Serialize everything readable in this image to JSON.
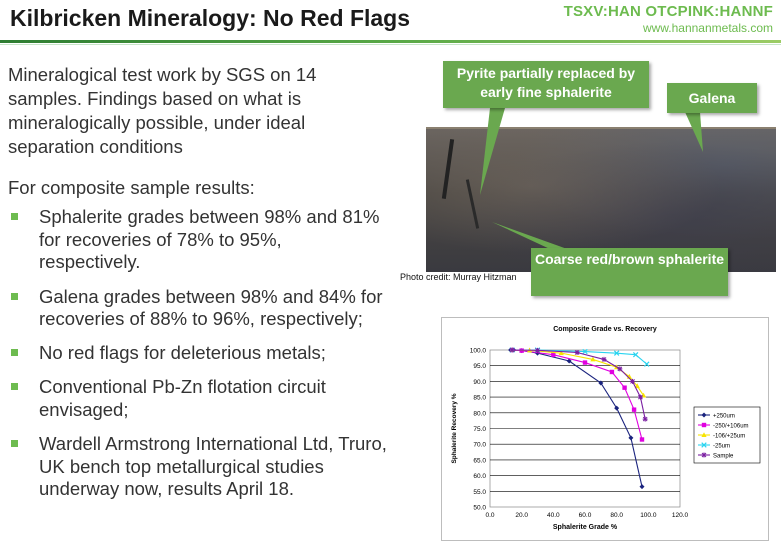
{
  "header": {
    "title": "Kilbricken Mineralogy: No Red Flags",
    "ticker": "TSXV:HAN OTCPINK:HANNF",
    "website": "www.hannanmetals.com"
  },
  "body": {
    "intro": "Mineralogical test work by SGS on 14 samples. Findings based on what is mineralogically possible, under ideal separation conditions",
    "composite_heading": "For composite sample results:",
    "bullets": [
      "Sphalerite grades between 98% and 81% for recoveries of 78% to 95%, respectively.",
      "Galena grades between 98% and 84% for recoveries of 88% to 96%, respectively;",
      "No red flags for deleterious metals;",
      "Conventional Pb-Zn flotation circuit envisaged;",
      "Wardell Armstrong International Ltd, Truro, UK bench top metallurgical studies underway now, results April 18."
    ]
  },
  "photo": {
    "callout_pyrite": "Pyrite partially replaced by early fine sphalerite",
    "callout_galena": "Galena",
    "callout_sphalerite": "Coarse red/brown sphalerite",
    "credit": "Photo credit: Murray Hitzman",
    "callout_color": "#6aa84f"
  },
  "chart_data": {
    "type": "line",
    "title": "Composite Grade vs. Recovery",
    "xlabel": "Sphalerite Grade %",
    "ylabel": "Sphalerite Recovery %",
    "xlim": [
      0,
      120
    ],
    "ylim": [
      50,
      100
    ],
    "xticks": [
      "0.0",
      "20.0",
      "40.0",
      "60.0",
      "80.0",
      "100.0",
      "120.0"
    ],
    "yticks": [
      "50.0",
      "55.0",
      "60.0",
      "65.0",
      "70.0",
      "75.0",
      "80.0",
      "85.0",
      "90.0",
      "95.0",
      "100.0"
    ],
    "grid": true,
    "legend_position": "right",
    "series": [
      {
        "name": "+250um",
        "color": "#1a237e",
        "marker": "diamond",
        "x": [
          13,
          15,
          20,
          30,
          50,
          70,
          80,
          89,
          96
        ],
        "y": [
          100.0,
          100.0,
          99.8,
          99.0,
          96.5,
          89.5,
          81.5,
          72.0,
          56.5
        ]
      },
      {
        "name": "-250/+106um",
        "color": "#e000e0",
        "marker": "square",
        "x": [
          14,
          20,
          40,
          60,
          77,
          85,
          91,
          96
        ],
        "y": [
          100.0,
          99.8,
          98.5,
          96.0,
          93.0,
          88.0,
          81.0,
          71.5
        ]
      },
      {
        "name": "-106/+25um",
        "color": "#f7e400",
        "marker": "triangle",
        "x": [
          14,
          25,
          45,
          65,
          80,
          88,
          93,
          97
        ],
        "y": [
          100.0,
          99.9,
          99.0,
          97.0,
          94.5,
          91.5,
          88.5,
          85.5
        ]
      },
      {
        "name": "-25um",
        "color": "#29d4f0",
        "marker": "x",
        "x": [
          14,
          30,
          60,
          80,
          92,
          99
        ],
        "y": [
          100.0,
          100.0,
          99.5,
          99.0,
          98.5,
          95.5
        ]
      },
      {
        "name": "Sample",
        "color": "#7b1fa2",
        "marker": "star",
        "x": [
          14,
          30,
          55,
          72,
          82,
          90,
          95,
          98
        ],
        "y": [
          100.0,
          99.9,
          99.2,
          97.0,
          94.0,
          90.0,
          85.0,
          78.0
        ]
      }
    ]
  }
}
